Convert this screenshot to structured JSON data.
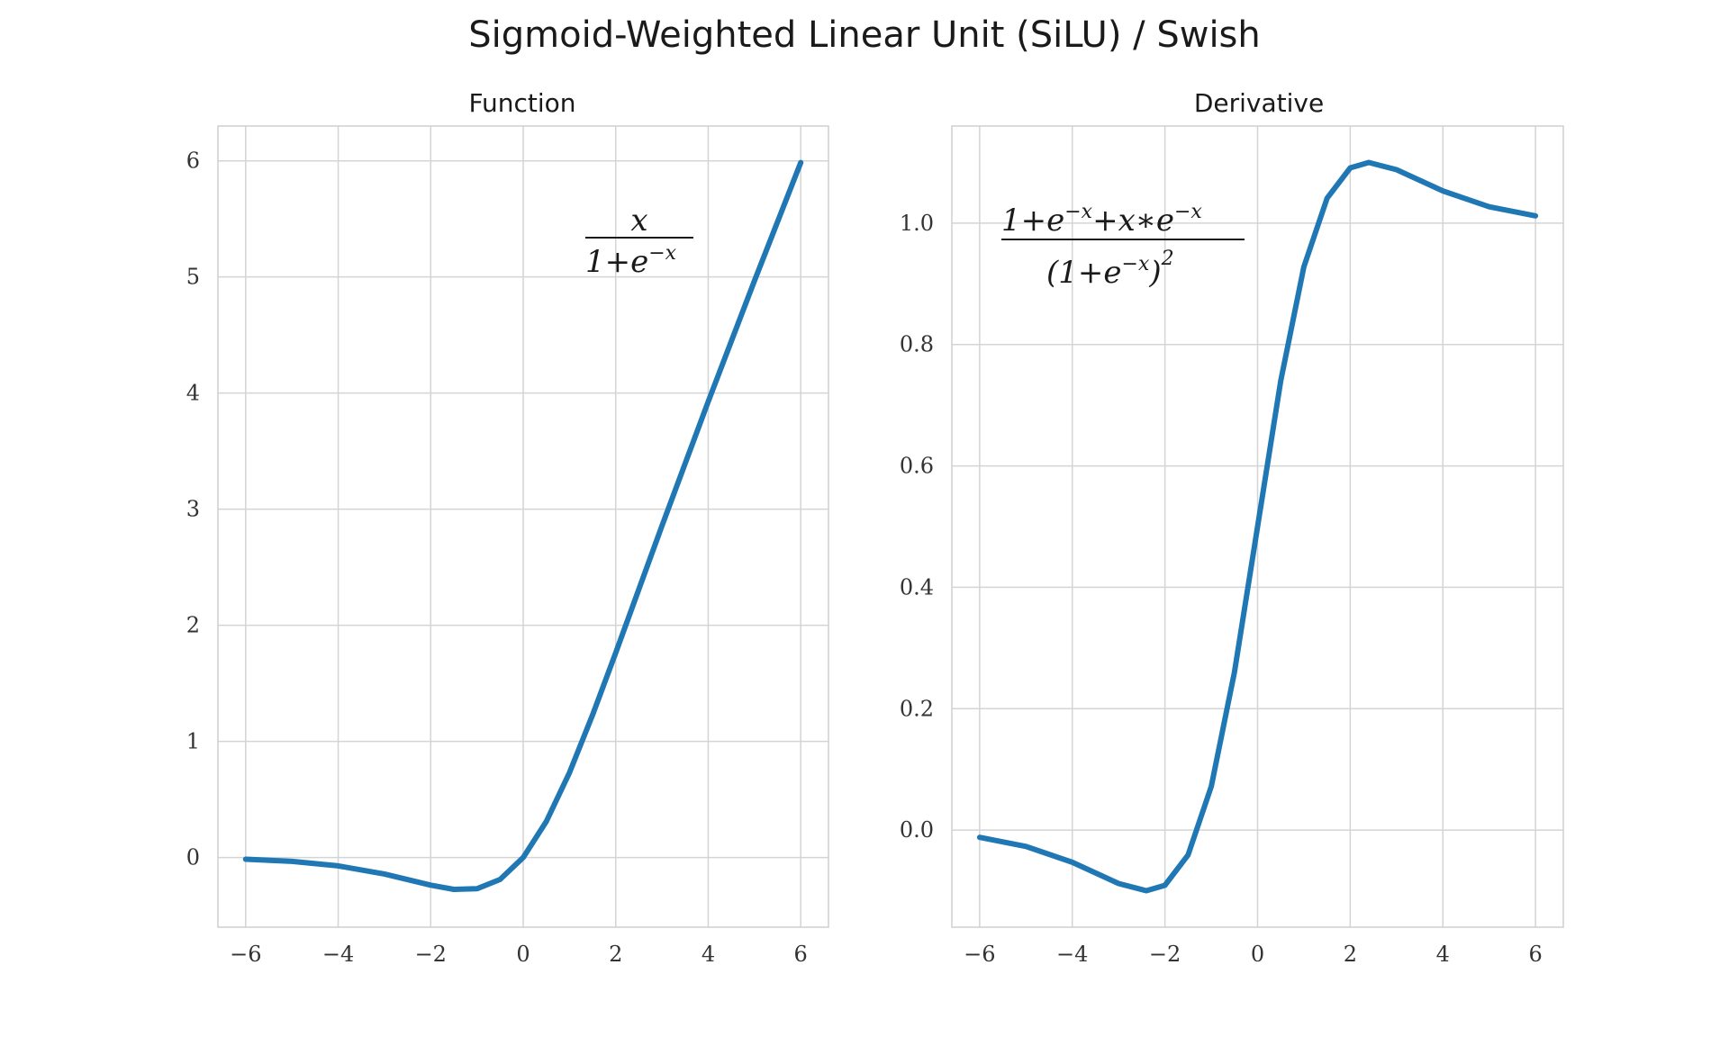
{
  "figure": {
    "title": "Sigmoid-Weighted Linear Unit (SiLU) / Swish",
    "line_color": "#1f77b4"
  },
  "chart_data": [
    {
      "type": "line",
      "title": "Function",
      "xlabel": "",
      "ylabel": "",
      "xlim": [
        -6.6,
        6.6
      ],
      "ylim": [
        -0.6,
        6.3
      ],
      "x_ticks": [
        -6,
        -4,
        -2,
        0,
        2,
        4,
        6
      ],
      "y_ticks": [
        0,
        1,
        2,
        3,
        4,
        5,
        6
      ],
      "x_tick_labels": [
        "−6",
        "−4",
        "−2",
        "0",
        "2",
        "4",
        "6"
      ],
      "y_tick_labels": [
        "0",
        "1",
        "2",
        "3",
        "4",
        "5",
        "6"
      ],
      "grid": true,
      "formula": {
        "numerator": "x",
        "denominator": "1+e",
        "denominator_exp": "−x"
      },
      "series": [
        {
          "x": [
            -6,
            -5,
            -4,
            -3,
            -2,
            -1.5,
            -1,
            -0.5,
            0,
            0.5,
            1,
            1.5,
            2,
            3,
            4,
            5,
            6
          ],
          "y": [
            -0.015,
            -0.033,
            -0.072,
            -0.142,
            -0.238,
            -0.274,
            -0.269,
            -0.189,
            0,
            0.311,
            0.731,
            1.227,
            1.762,
            2.857,
            3.928,
            4.967,
            5.985
          ]
        }
      ]
    },
    {
      "type": "line",
      "title": "Derivative",
      "xlabel": "",
      "ylabel": "",
      "xlim": [
        -6.6,
        6.6
      ],
      "ylim": [
        -0.16,
        1.16
      ],
      "x_ticks": [
        -6,
        -4,
        -2,
        0,
        2,
        4,
        6
      ],
      "y_ticks": [
        0.0,
        0.2,
        0.4,
        0.6,
        0.8,
        1.0
      ],
      "x_tick_labels": [
        "−6",
        "−4",
        "−2",
        "0",
        "2",
        "4",
        "6"
      ],
      "y_tick_labels": [
        "0.0",
        "0.2",
        "0.4",
        "0.6",
        "0.8",
        "1.0"
      ],
      "grid": true,
      "formula": {
        "num_a": "1+e",
        "num_a_exp": "−x",
        "num_b": "+x∗e",
        "num_b_exp": "−x",
        "den": "(1+e",
        "den_exp": "−x",
        "den_close": ")",
        "den_power": "2"
      },
      "series": [
        {
          "x": [
            -6,
            -5,
            -4,
            -3,
            -2.5,
            -2.4,
            -2,
            -1.5,
            -1,
            -0.5,
            0,
            0.5,
            1,
            1.5,
            2,
            2.4,
            3,
            4,
            5,
            6
          ],
          "y": [
            -0.012,
            -0.027,
            -0.053,
            -0.088,
            -0.098,
            -0.1,
            -0.091,
            -0.041,
            0.072,
            0.26,
            0.5,
            0.74,
            0.928,
            1.041,
            1.091,
            1.1,
            1.088,
            1.053,
            1.027,
            1.012
          ]
        }
      ]
    }
  ]
}
